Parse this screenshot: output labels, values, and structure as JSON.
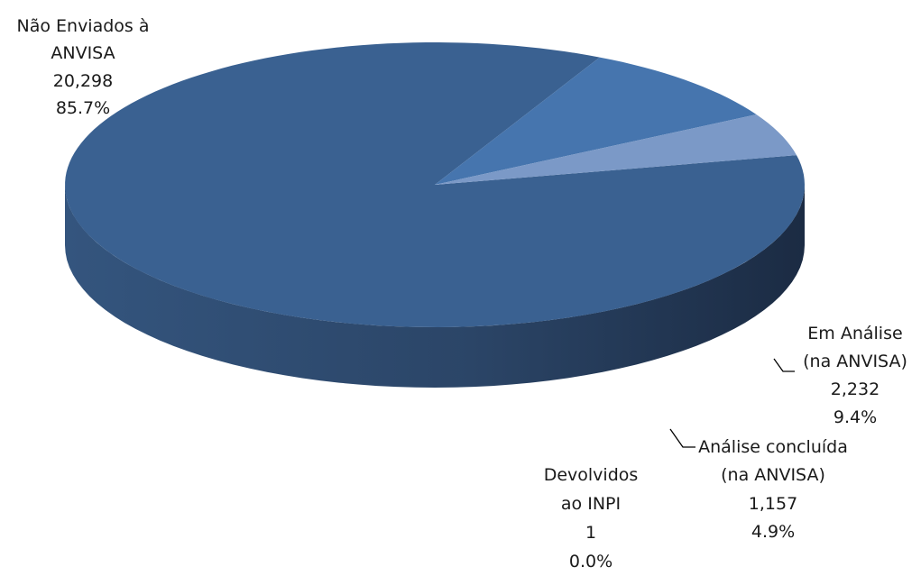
{
  "chart_data": {
    "type": "pie",
    "style": "3d",
    "title": "",
    "series": [
      {
        "name": "",
        "slices": [
          {
            "label_lines": [
              "Não Enviados à",
              "ANVISA"
            ],
            "value": 20298,
            "value_text": "20,298",
            "percent": 85.7,
            "percent_text": "85.7%",
            "color": "#3a6191"
          },
          {
            "label_lines": [
              "Em Análise",
              "(na ANVISA)"
            ],
            "value": 2232,
            "value_text": "2,232",
            "percent": 9.4,
            "percent_text": "9.4%",
            "color": "#4675ae"
          },
          {
            "label_lines": [
              "Análise concluída",
              "(na ANVISA)"
            ],
            "value": 1157,
            "value_text": "1,157",
            "percent": 4.9,
            "percent_text": "4.9%",
            "color": "#7b99c7"
          },
          {
            "label_lines": [
              "Devolvidos",
              "ao INPI"
            ],
            "value": 1,
            "value_text": "1",
            "percent": 0.0,
            "percent_text": "0.0%",
            "color": "#6f8fb8"
          }
        ]
      }
    ],
    "legend": "none",
    "data_labels": "outside-with-leader-lines"
  }
}
